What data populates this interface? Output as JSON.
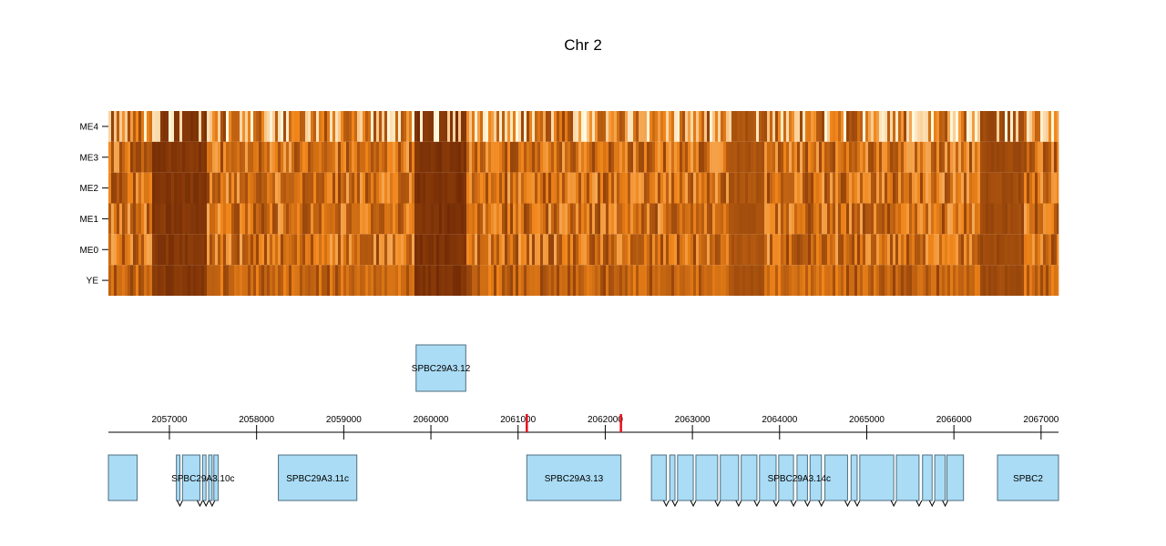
{
  "chart_data": {
    "type": "heatmap",
    "title": "Chr 2",
    "rows": [
      "ME4",
      "ME3",
      "ME2",
      "ME1",
      "ME0",
      "YE"
    ],
    "x_range": [
      2056300,
      2067200
    ],
    "x_ticks": [
      2057000,
      2058000,
      2059000,
      2060000,
      2061000,
      2062000,
      2063000,
      2064000,
      2065000,
      2066000,
      2067000
    ],
    "x_tick_labels": [
      "2057000",
      "2058000",
      "2059000",
      "2060000",
      "2061000",
      "2062000",
      "2063000",
      "2064000",
      "2065000",
      "2066000",
      "2067000"
    ],
    "highlight_positions": [
      2061100,
      2062180
    ],
    "colors": {
      "heat_low": "#fffbe3",
      "heat_mid": "#f08519",
      "heat_high": "#6b2504",
      "gene_fill": "#aadcf5",
      "gene_stroke": "#4f6e80",
      "highlight": "#e8101c"
    },
    "heat_blocks": [
      {
        "start": 2056800,
        "end": 2057400,
        "level": 0.95
      },
      {
        "start": 2059800,
        "end": 2060400,
        "level": 0.97
      },
      {
        "start": 2063400,
        "end": 2063820,
        "level": 0.8
      },
      {
        "start": 2066300,
        "end": 2066800,
        "level": 0.85
      }
    ],
    "genes_top": [
      {
        "label": "SPBC29A3.12",
        "start": 2059830,
        "end": 2060400
      }
    ],
    "genes_bottom": [
      {
        "label": "",
        "start": 2056300,
        "end": 2056630
      },
      {
        "label": "SPBC29A3.10c",
        "start": 2057320,
        "end": 2057450,
        "exons": [
          [
            2057080,
            2057120
          ],
          [
            2057150,
            2057350
          ],
          [
            2057380,
            2057420
          ],
          [
            2057450,
            2057490
          ],
          [
            2057510,
            2057560
          ]
        ]
      },
      {
        "label": "SPBC29A3.11c",
        "start": 2058250,
        "end": 2059150
      },
      {
        "label": "SPBC29A3.13",
        "start": 2061100,
        "end": 2062180
      },
      {
        "label": "SPBC29A3.14c",
        "start": 2062530,
        "end": 2065920,
        "exons": [
          [
            2062530,
            2062700
          ],
          [
            2062740,
            2062800
          ],
          [
            2062830,
            2063010
          ],
          [
            2063040,
            2063290
          ],
          [
            2063320,
            2063530
          ],
          [
            2063560,
            2063740
          ],
          [
            2063770,
            2063960
          ],
          [
            2063990,
            2064160
          ],
          [
            2064200,
            2064320
          ],
          [
            2064350,
            2064480
          ],
          [
            2064520,
            2064780
          ],
          [
            2064820,
            2064890
          ],
          [
            2064920,
            2065310
          ],
          [
            2065340,
            2065600
          ],
          [
            2065640,
            2065750
          ],
          [
            2065780,
            2065900
          ],
          [
            2065920,
            2066110
          ]
        ]
      },
      {
        "label": "SPBC2",
        "start": 2066500,
        "end": 2067200
      }
    ]
  }
}
